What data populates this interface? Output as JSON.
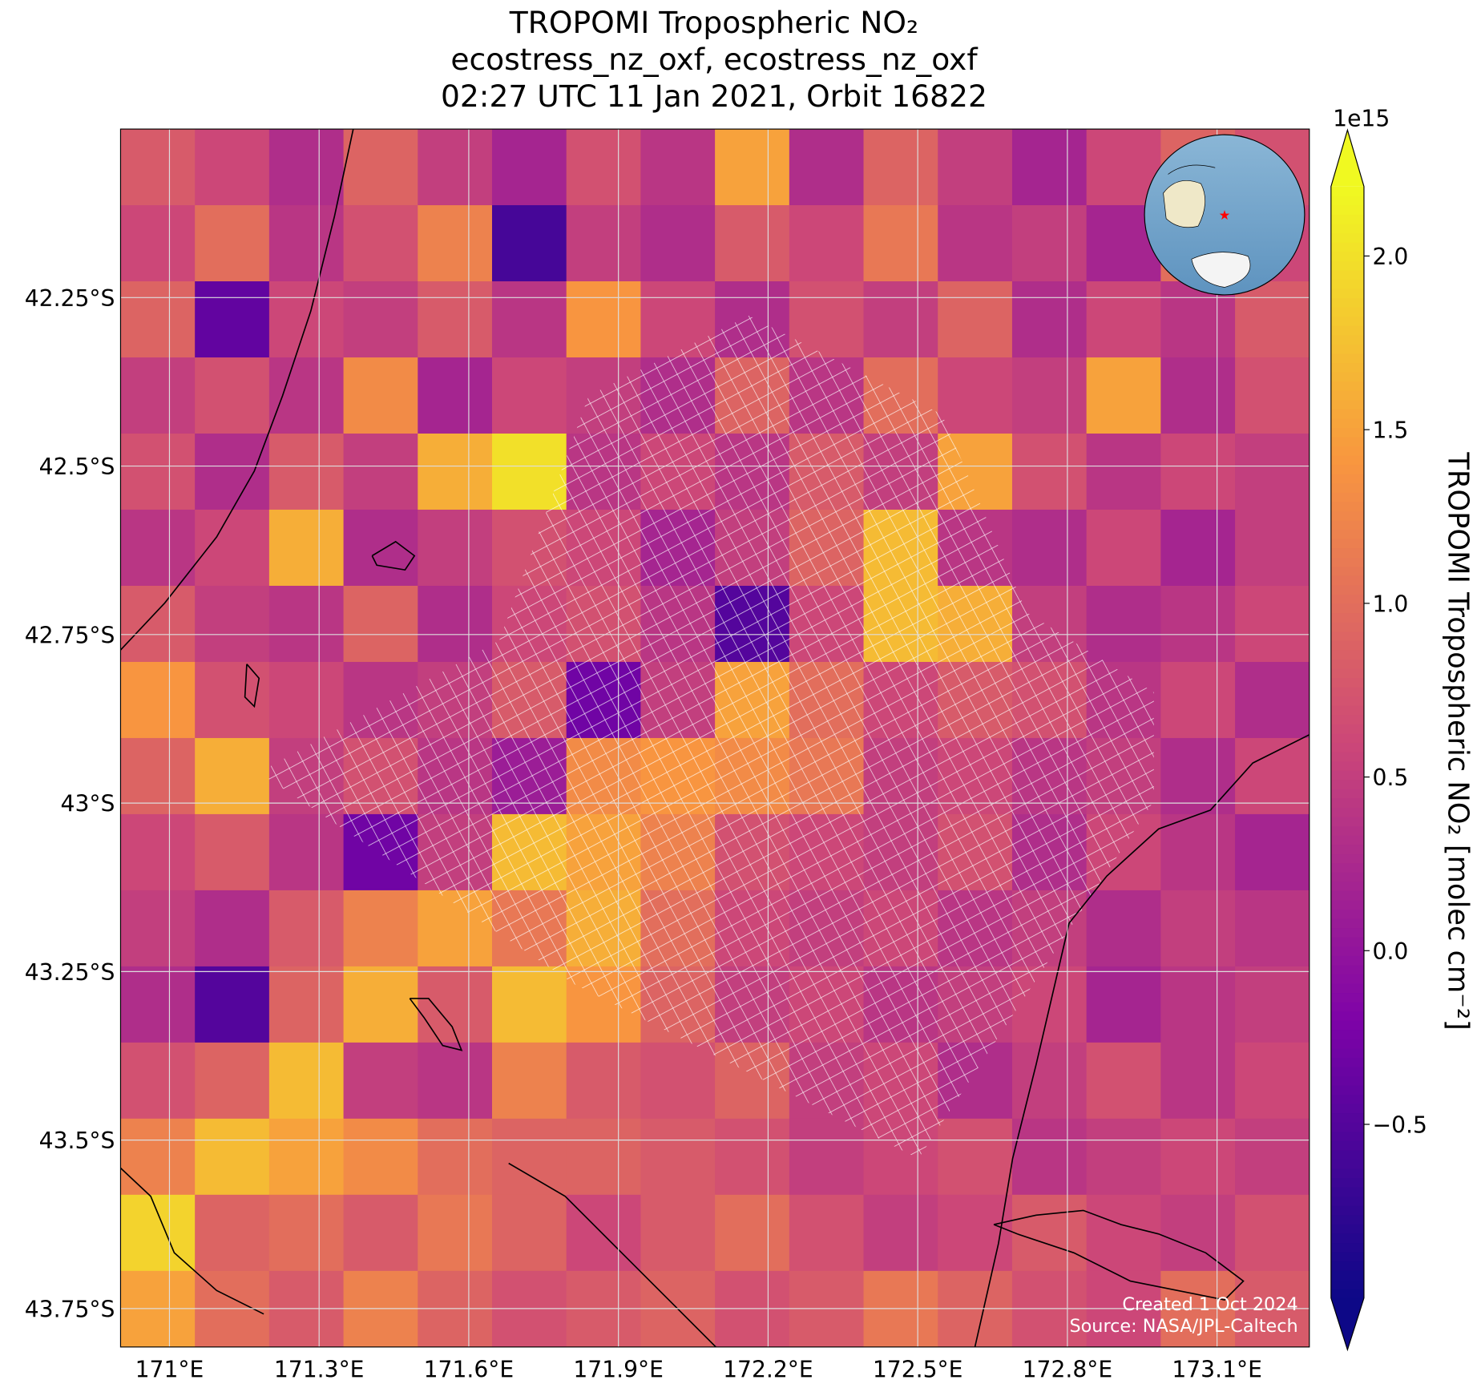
{
  "chart_data": {
    "type": "heatmap",
    "title": "TROPOMI Tropospheric NO₂",
    "subtitle": "ecostress_nz_oxf, ecostress_nz_oxf",
    "subtitle2": "02:27 UTC 11 Jan 2021, Orbit 16822",
    "colormap": "plasma",
    "colorbar_label": "TROPOMI Tropospheric NO₂ [molec cm⁻²]",
    "colorbar_offset": "1e15",
    "clim": [
      -1.0,
      2.2
    ],
    "cticks": [
      {
        "value": -0.5,
        "label": "−0.5"
      },
      {
        "value": 0,
        "label": "0.0"
      },
      0.5,
      {
        "value": 1,
        "label": "1.0"
      },
      1.5,
      {
        "value": 2,
        "label": "2.0"
      }
    ],
    "xlim": [
      170.902,
      173.285
    ],
    "ylim": [
      -43.807,
      -42.0
    ],
    "xticks": [
      {
        "value": 171.0,
        "label": "171°E"
      },
      {
        "value": 171.3,
        "label": "171.3°E"
      },
      {
        "value": 171.6,
        "label": "171.6°E"
      },
      {
        "value": 171.9,
        "label": "171.9°E"
      },
      {
        "value": 172.2,
        "label": "172.2°E"
      },
      {
        "value": 172.5,
        "label": "172.5°E"
      },
      {
        "value": 172.8,
        "label": "172.8°E"
      },
      {
        "value": 173.1,
        "label": "173.1°E"
      }
    ],
    "yticks": [
      {
        "value": -42.25,
        "label": "42.25°S"
      },
      {
        "value": -42.5,
        "label": "42.5°S"
      },
      {
        "value": -42.75,
        "label": "42.75°S"
      },
      {
        "value": -43.0,
        "label": "43°S"
      },
      {
        "value": -43.25,
        "label": "43.25°S"
      },
      {
        "value": -43.5,
        "label": "43.5°S"
      },
      {
        "value": -43.75,
        "label": "43.75°S"
      }
    ],
    "grid": true,
    "marker": {
      "lon": 172.23,
      "lat": -43.26,
      "color": "#ff0000"
    },
    "values": [
      [
        0.8,
        0.6,
        0.3,
        0.9,
        0.5,
        0.2,
        0.7,
        0.4,
        1.5,
        0.3,
        0.9,
        0.5,
        0.2,
        0.6,
        0.9,
        0.7
      ],
      [
        0.6,
        1.0,
        0.4,
        0.7,
        1.2,
        -0.6,
        0.5,
        0.3,
        0.8,
        0.6,
        1.1,
        0.4,
        0.5,
        0.2,
        1.0,
        0.6
      ],
      [
        0.9,
        -0.4,
        0.6,
        0.5,
        0.8,
        0.4,
        1.4,
        0.6,
        0.3,
        0.7,
        0.5,
        0.9,
        0.3,
        0.6,
        0.4,
        0.8
      ],
      [
        0.5,
        0.7,
        0.4,
        1.3,
        0.2,
        0.6,
        0.5,
        0.3,
        0.9,
        0.4,
        1.0,
        0.6,
        0.5,
        1.5,
        0.3,
        0.7
      ],
      [
        0.7,
        0.3,
        0.8,
        0.5,
        1.6,
        2.0,
        0.4,
        0.6,
        0.4,
        0.8,
        0.5,
        1.5,
        0.7,
        0.4,
        0.6,
        0.5
      ],
      [
        0.4,
        0.6,
        1.6,
        0.3,
        0.5,
        0.7,
        0.6,
        0.2,
        0.5,
        0.9,
        1.7,
        0.4,
        0.3,
        0.6,
        0.2,
        0.5
      ],
      [
        0.8,
        0.5,
        0.4,
        0.9,
        0.3,
        0.6,
        0.7,
        0.4,
        -0.5,
        0.6,
        1.7,
        1.6,
        0.5,
        0.3,
        0.4,
        0.6
      ],
      [
        1.4,
        0.7,
        0.6,
        0.4,
        0.5,
        0.8,
        -0.3,
        0.5,
        1.5,
        1.0,
        0.6,
        0.8,
        0.7,
        0.4,
        0.6,
        0.3
      ],
      [
        0.9,
        1.6,
        0.5,
        0.7,
        0.4,
        0.1,
        1.3,
        1.4,
        1.3,
        1.1,
        0.5,
        0.6,
        0.4,
        0.5,
        0.3,
        0.6
      ],
      [
        0.6,
        0.8,
        0.4,
        -0.3,
        0.5,
        1.7,
        1.5,
        1.2,
        0.7,
        0.6,
        0.5,
        0.7,
        0.3,
        0.6,
        0.4,
        0.2
      ],
      [
        0.5,
        0.3,
        0.8,
        1.2,
        1.5,
        1.1,
        1.6,
        1.0,
        0.6,
        0.5,
        0.6,
        0.4,
        0.5,
        0.3,
        0.5,
        0.4
      ],
      [
        0.3,
        -0.5,
        0.9,
        1.6,
        0.8,
        1.7,
        1.4,
        0.9,
        0.5,
        0.6,
        0.4,
        0.5,
        0.6,
        0.2,
        0.4,
        0.5
      ],
      [
        0.7,
        0.9,
        1.7,
        0.5,
        0.4,
        1.2,
        0.8,
        0.7,
        0.9,
        0.5,
        0.6,
        0.3,
        0.5,
        0.7,
        0.4,
        0.6
      ],
      [
        1.2,
        1.7,
        1.5,
        1.3,
        1.0,
        0.9,
        0.9,
        0.8,
        0.7,
        0.5,
        0.6,
        0.7,
        0.4,
        0.5,
        0.6,
        0.5
      ],
      [
        1.9,
        0.9,
        1.0,
        0.8,
        1.1,
        0.9,
        0.6,
        0.8,
        1.0,
        0.7,
        0.5,
        0.6,
        0.8,
        0.6,
        0.5,
        0.7
      ],
      [
        1.5,
        1.0,
        0.8,
        1.2,
        0.9,
        0.7,
        0.8,
        0.9,
        0.7,
        0.8,
        1.1,
        0.9,
        0.7,
        0.6,
        1.0,
        0.8
      ]
    ],
    "footer": [
      "Created 1 Oct 2024",
      "Source: NASA/JPL-Caltech"
    ]
  }
}
